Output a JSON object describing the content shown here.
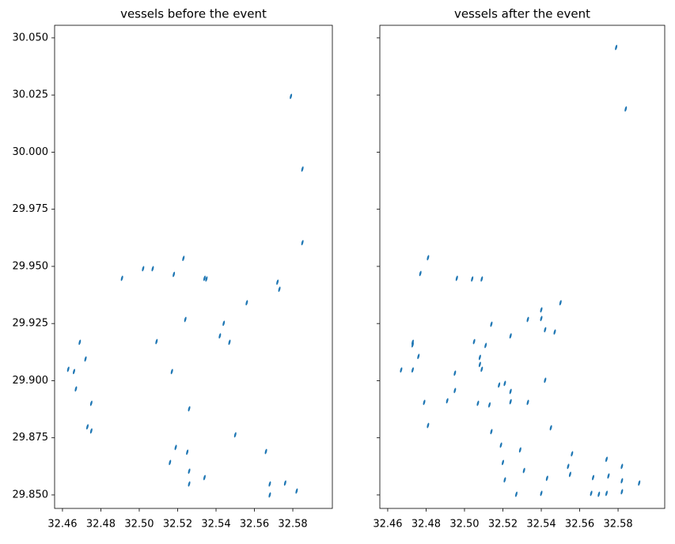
{
  "chart_data": [
    {
      "type": "scatter",
      "title": "vessels before the event",
      "color": "#1f77b4",
      "xlim": [
        32.4559,
        32.6006
      ],
      "ylim": [
        29.8441,
        30.0555
      ],
      "xticks": [
        32.46,
        32.48,
        {
          "value": 32.5,
          "label": "32.50"
        },
        32.52,
        32.54,
        32.56,
        32.58
      ],
      "yticks": [
        {
          "value": 29.85,
          "label": "29.850"
        },
        {
          "value": 29.875,
          "label": "29.875"
        },
        {
          "value": 29.9,
          "label": "29.900"
        },
        {
          "value": 29.925,
          "label": "29.925"
        },
        {
          "value": 29.95,
          "label": "29.950"
        },
        {
          "value": 29.975,
          "label": "29.975"
        },
        {
          "value": 30.0,
          "label": "30.000"
        },
        {
          "value": 30.025,
          "label": "30.025"
        },
        {
          "value": 30.05,
          "label": "30.050"
        }
      ],
      "x": [
        32.579,
        32.585,
        32.585,
        32.523,
        32.534,
        32.518,
        32.502,
        32.491,
        32.556,
        32.572,
        32.573,
        32.524,
        32.544,
        32.542,
        32.547,
        32.509,
        32.469,
        32.472,
        32.463,
        32.517,
        32.475,
        32.467,
        32.526,
        32.55,
        32.519,
        32.525,
        32.566,
        32.516,
        32.576,
        32.582,
        32.568,
        32.526,
        32.534,
        32.473,
        32.475,
        32.466,
        32.526,
        32.535,
        32.507,
        32.568
      ],
      "y": [
        30.0244,
        29.9926,
        29.9604,
        29.9535,
        29.9448,
        29.9465,
        29.949,
        29.9448,
        29.9341,
        29.9431,
        29.94,
        29.9268,
        29.9251,
        29.9196,
        29.9168,
        29.9171,
        29.9168,
        29.9095,
        29.905,
        29.904,
        29.8901,
        29.8964,
        29.8877,
        29.8763,
        29.8708,
        29.8687,
        29.869,
        29.8642,
        29.8552,
        29.8517,
        29.8548,
        29.8548,
        29.8576,
        29.8798,
        29.878,
        29.904,
        29.8604,
        29.9445,
        29.949,
        29.85
      ]
    },
    {
      "type": "scatter",
      "title": "vessels after the event",
      "color": "#1f77b4",
      "xlim": [
        32.4559,
        32.6043
      ],
      "ylim": [
        29.8441,
        30.0555
      ],
      "xticks": [
        32.46,
        32.48,
        {
          "value": 32.5,
          "label": "32.50"
        },
        32.52,
        32.54,
        32.56,
        32.58
      ],
      "yticks": [
        29.85,
        29.875,
        29.9,
        29.925,
        29.95,
        29.975,
        30.0,
        30.025,
        30.05
      ],
      "x": [
        32.579,
        32.584,
        32.481,
        32.496,
        32.477,
        32.509,
        32.504,
        32.473,
        32.473,
        32.55,
        32.54,
        32.54,
        32.533,
        32.542,
        32.547,
        32.476,
        32.514,
        32.508,
        32.508,
        32.509,
        32.495,
        32.495,
        32.473,
        32.467,
        32.479,
        32.491,
        32.507,
        32.513,
        32.518,
        32.521,
        32.542,
        32.524,
        32.533,
        32.524,
        32.524,
        32.505,
        32.481,
        32.519,
        32.529,
        32.52,
        32.531,
        32.543,
        32.556,
        32.554,
        32.521,
        32.555,
        32.567,
        32.574,
        32.575,
        32.582,
        32.582,
        32.582,
        32.57,
        32.566,
        32.574,
        32.54,
        32.527,
        32.591,
        32.514,
        32.545,
        32.511
      ],
      "y": [
        30.0458,
        30.0189,
        29.9538,
        29.9448,
        29.9469,
        29.9445,
        29.9445,
        29.9168,
        29.9157,
        29.9341,
        29.9272,
        29.931,
        29.9268,
        29.9223,
        29.9213,
        29.9106,
        29.9247,
        29.9102,
        29.9071,
        29.905,
        29.9033,
        29.8957,
        29.9047,
        29.9047,
        29.8905,
        29.8912,
        29.8901,
        29.8894,
        29.8981,
        29.8988,
        29.9002,
        29.8908,
        29.8905,
        29.8953,
        29.9196,
        29.9171,
        29.8804,
        29.8718,
        29.8697,
        29.8642,
        29.8607,
        29.8573,
        29.868,
        29.8625,
        29.8566,
        29.859,
        29.8576,
        29.8656,
        29.8583,
        29.8625,
        29.8562,
        29.8514,
        29.8503,
        29.8507,
        29.8507,
        29.8507,
        29.8503,
        29.8552,
        29.8777,
        29.8794,
        29.9154
      ]
    }
  ]
}
